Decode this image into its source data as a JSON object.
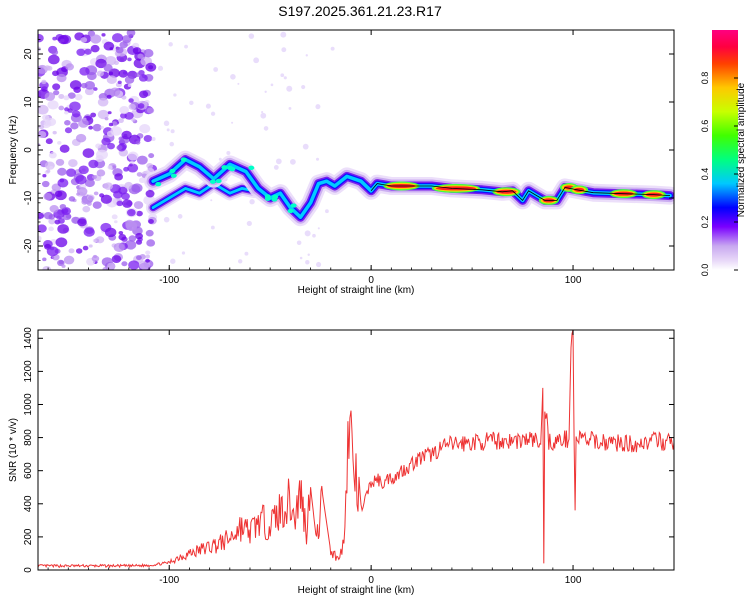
{
  "title": "S197.2025.361.21.23.R17",
  "chart_data": [
    {
      "type": "heatmap",
      "xlabel": "Height of straight line (km)",
      "ylabel": "Frequency (Hz)",
      "xlim": [
        -165,
        150
      ],
      "ylim": [
        -25,
        25
      ],
      "x_ticks": [
        -100,
        0,
        100
      ],
      "y_ticks": [
        -20,
        -10,
        0,
        10,
        20
      ],
      "colorbar": {
        "label": "Normalized spectral amplitude",
        "ticks": [
          0.0,
          0.2,
          0.4,
          0.6,
          0.8
        ],
        "range": [
          0,
          1
        ]
      },
      "ridge": [
        [
          -108,
          -6.5
        ],
        [
          -100,
          -5
        ],
        [
          -92,
          -2
        ],
        [
          -85,
          -3.5
        ],
        [
          -78,
          -6
        ],
        [
          -70,
          -3
        ],
        [
          -62,
          -4.5
        ],
        [
          -56,
          -8
        ],
        [
          -50,
          -10
        ],
        [
          -45,
          -9
        ],
        [
          -40,
          -12
        ],
        [
          -35,
          -14
        ],
        [
          -30,
          -11
        ],
        [
          -26,
          -7
        ],
        [
          -22,
          -6.5
        ],
        [
          -18,
          -7.5
        ],
        [
          -12,
          -5.5
        ],
        [
          -5,
          -6.5
        ],
        [
          0,
          -8.5
        ],
        [
          3,
          -7
        ],
        [
          10,
          -7.5
        ],
        [
          20,
          -7.5
        ],
        [
          30,
          -7.5
        ],
        [
          40,
          -8
        ],
        [
          55,
          -8.3
        ],
        [
          65,
          -8.7
        ],
        [
          70,
          -8.5
        ],
        [
          75,
          -10.5
        ],
        [
          78,
          -8.5
        ],
        [
          82,
          -9.5
        ],
        [
          86,
          -10.5
        ],
        [
          92,
          -10.5
        ],
        [
          96,
          -7.8
        ],
        [
          102,
          -8.3
        ],
        [
          110,
          -8.9
        ],
        [
          125,
          -9.1
        ],
        [
          140,
          -9.3
        ],
        [
          148,
          -9.5
        ]
      ],
      "branch": [
        [
          -108,
          -12
        ],
        [
          -100,
          -10
        ],
        [
          -92,
          -8
        ],
        [
          -85,
          -9
        ],
        [
          -78,
          -7
        ],
        [
          -70,
          -9
        ],
        [
          -64,
          -8
        ],
        [
          -58,
          -8.5
        ]
      ]
    },
    {
      "type": "line",
      "xlabel": "Height of straight line (km)",
      "ylabel": "SNR (10 * v/v)",
      "xlim": [
        -165,
        150
      ],
      "ylim": [
        0,
        1450
      ],
      "x_ticks": [
        -100,
        0,
        100
      ],
      "y_ticks": [
        0,
        200,
        400,
        600,
        800,
        1000,
        1200,
        1400
      ],
      "series": [
        {
          "name": "SNR",
          "color": "#ee3333",
          "x": [
            -165,
            -140,
            -120,
            -110,
            -100,
            -95,
            -90,
            -85,
            -80,
            -75,
            -70,
            -65,
            -60,
            -55,
            -50,
            -45,
            -40,
            -38,
            -35,
            -32,
            -30,
            -27,
            -24,
            -20,
            -18,
            -16,
            -14,
            -13,
            -12,
            -11,
            -10,
            -8,
            -6,
            -4,
            -2,
            0,
            3,
            6,
            9,
            12,
            15,
            18,
            20,
            25,
            30,
            35,
            40,
            50,
            60,
            70,
            80,
            84,
            85,
            85.5,
            86,
            87,
            88,
            90,
            95,
            98,
            99,
            100,
            100.5,
            101,
            101.5,
            102,
            105,
            110,
            120,
            130,
            140,
            150
          ],
          "values": [
            25,
            25,
            25,
            28,
            45,
            80,
            100,
            120,
            140,
            160,
            190,
            260,
            230,
            300,
            270,
            360,
            420,
            300,
            480,
            230,
            500,
            170,
            450,
            110,
            90,
            60,
            150,
            260,
            700,
            780,
            800,
            560,
            420,
            360,
            480,
            520,
            550,
            520,
            560,
            560,
            600,
            620,
            640,
            680,
            700,
            740,
            760,
            770,
            780,
            780,
            790,
            760,
            1100,
            40,
            1020,
            900,
            780,
            770,
            790,
            790,
            1350,
            1450,
            780,
            360,
            780,
            800,
            790,
            780,
            770,
            760,
            780,
            770
          ]
        }
      ]
    }
  ]
}
